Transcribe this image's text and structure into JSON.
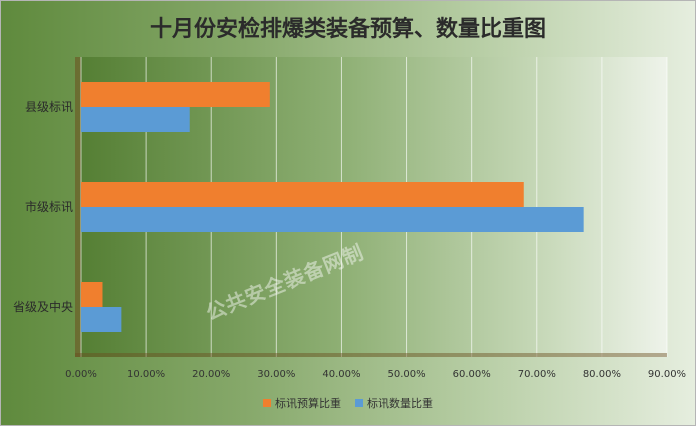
{
  "chart_data": {
    "type": "bar",
    "orientation": "horizontal",
    "title": "十月份安检排爆类装备预算、数量比重图",
    "categories": [
      "县级标讯",
      "市级标讯",
      "省级及中央"
    ],
    "series": [
      {
        "name": "标讯预算比重",
        "color": "#f07f2e",
        "values": [
          0.29,
          0.68,
          0.033
        ]
      },
      {
        "name": "标讯数量比重",
        "color": "#5b9bd5",
        "values": [
          0.167,
          0.772,
          0.062
        ]
      }
    ],
    "xlim": [
      0,
      0.9
    ],
    "xticks": [
      0,
      0.1,
      0.2,
      0.3,
      0.4,
      0.5,
      0.6,
      0.7,
      0.8,
      0.9
    ],
    "xtick_labels": [
      "0.00%",
      "10.00%",
      "20.00%",
      "30.00%",
      "40.00%",
      "50.00%",
      "60.00%",
      "70.00%",
      "80.00%",
      "90.00%"
    ],
    "grid": true,
    "legend_position": "bottom"
  },
  "watermark": "公共安全装备网制"
}
